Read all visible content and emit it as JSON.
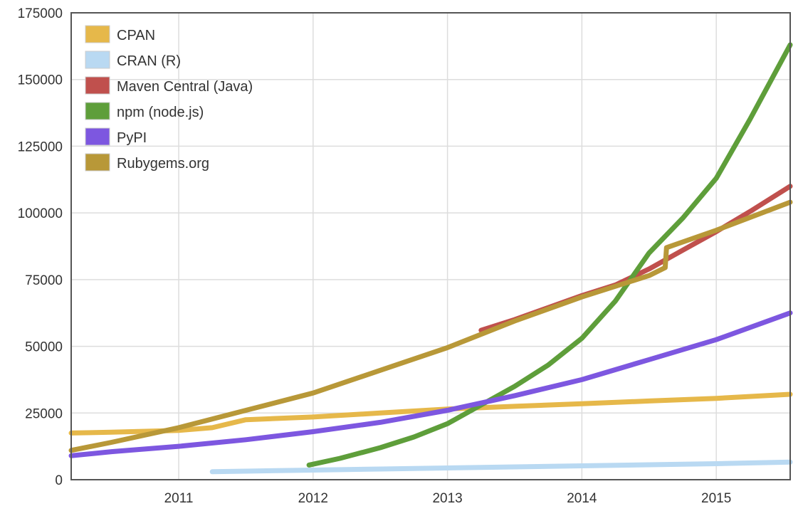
{
  "chart_data": {
    "type": "line",
    "title": "",
    "xlabel": "",
    "ylabel": "",
    "xlim": [
      2010.2,
      2015.55
    ],
    "ylim": [
      0,
      175000
    ],
    "grid": true,
    "legend_position": "top-left",
    "x_ticks": [
      {
        "value": 2011,
        "label": "2011"
      },
      {
        "value": 2012,
        "label": "2012"
      },
      {
        "value": 2013,
        "label": "2013"
      },
      {
        "value": 2014,
        "label": "2014"
      },
      {
        "value": 2015,
        "label": "2015"
      }
    ],
    "y_ticks": [
      {
        "value": 0,
        "label": "0"
      },
      {
        "value": 25000,
        "label": "25000"
      },
      {
        "value": 50000,
        "label": "50000"
      },
      {
        "value": 75000,
        "label": "75000"
      },
      {
        "value": 100000,
        "label": "100000"
      },
      {
        "value": 125000,
        "label": "125000"
      },
      {
        "value": 150000,
        "label": "150000"
      },
      {
        "value": 175000,
        "label": "175000"
      }
    ],
    "series": [
      {
        "name": "CPAN",
        "color": "#e6b84a",
        "x": [
          2010.2,
          2010.5,
          2011.0,
          2011.25,
          2011.5,
          2012.0,
          2012.5,
          2013.0,
          2013.5,
          2014.0,
          2014.5,
          2015.0,
          2015.55
        ],
        "y": [
          17500,
          17800,
          18500,
          19500,
          22500,
          23500,
          25000,
          26500,
          27500,
          28500,
          29500,
          30500,
          32000
        ]
      },
      {
        "name": "CRAN (R)",
        "color": "#b9d9f2",
        "x": [
          2011.25,
          2011.5,
          2012.0,
          2012.5,
          2013.0,
          2013.5,
          2014.0,
          2014.5,
          2015.0,
          2015.55
        ],
        "y": [
          3000,
          3200,
          3600,
          4000,
          4400,
          4800,
          5200,
          5600,
          6000,
          6600
        ]
      },
      {
        "name": "Maven Central (Java)",
        "color": "#c0504d",
        "x": [
          2013.25,
          2013.5,
          2013.75,
          2014.0,
          2014.25,
          2014.5,
          2014.75,
          2015.0,
          2015.25,
          2015.55
        ],
        "y": [
          56000,
          60000,
          64500,
          69000,
          73000,
          79000,
          86000,
          93000,
          100500,
          110000
        ]
      },
      {
        "name": "npm (node.js)",
        "color": "#5e9e3a",
        "x": [
          2011.97,
          2012.2,
          2012.5,
          2012.75,
          2013.0,
          2013.25,
          2013.5,
          2013.75,
          2014.0,
          2014.25,
          2014.5,
          2014.75,
          2015.0,
          2015.25,
          2015.55
        ],
        "y": [
          5500,
          8000,
          12000,
          16000,
          21000,
          28000,
          35000,
          43000,
          53000,
          67000,
          85000,
          98000,
          113000,
          135000,
          163000
        ]
      },
      {
        "name": "PyPI",
        "color": "#7d57e0",
        "x": [
          2010.2,
          2010.5,
          2011.0,
          2011.5,
          2012.0,
          2012.5,
          2013.0,
          2013.5,
          2014.0,
          2014.5,
          2015.0,
          2015.55
        ],
        "y": [
          9000,
          10500,
          12500,
          15000,
          18000,
          21500,
          26000,
          31500,
          37500,
          45000,
          52500,
          62500
        ]
      },
      {
        "name": "Rubygems.org",
        "color": "#b89838",
        "x": [
          2010.2,
          2010.5,
          2011.0,
          2011.5,
          2012.0,
          2012.5,
          2013.0,
          2013.5,
          2014.0,
          2014.5,
          2014.62,
          2014.63,
          2015.0,
          2015.55
        ],
        "y": [
          11000,
          14000,
          19500,
          26000,
          32500,
          41000,
          49500,
          59500,
          68500,
          76500,
          79500,
          87000,
          93500,
          104000
        ]
      }
    ]
  }
}
